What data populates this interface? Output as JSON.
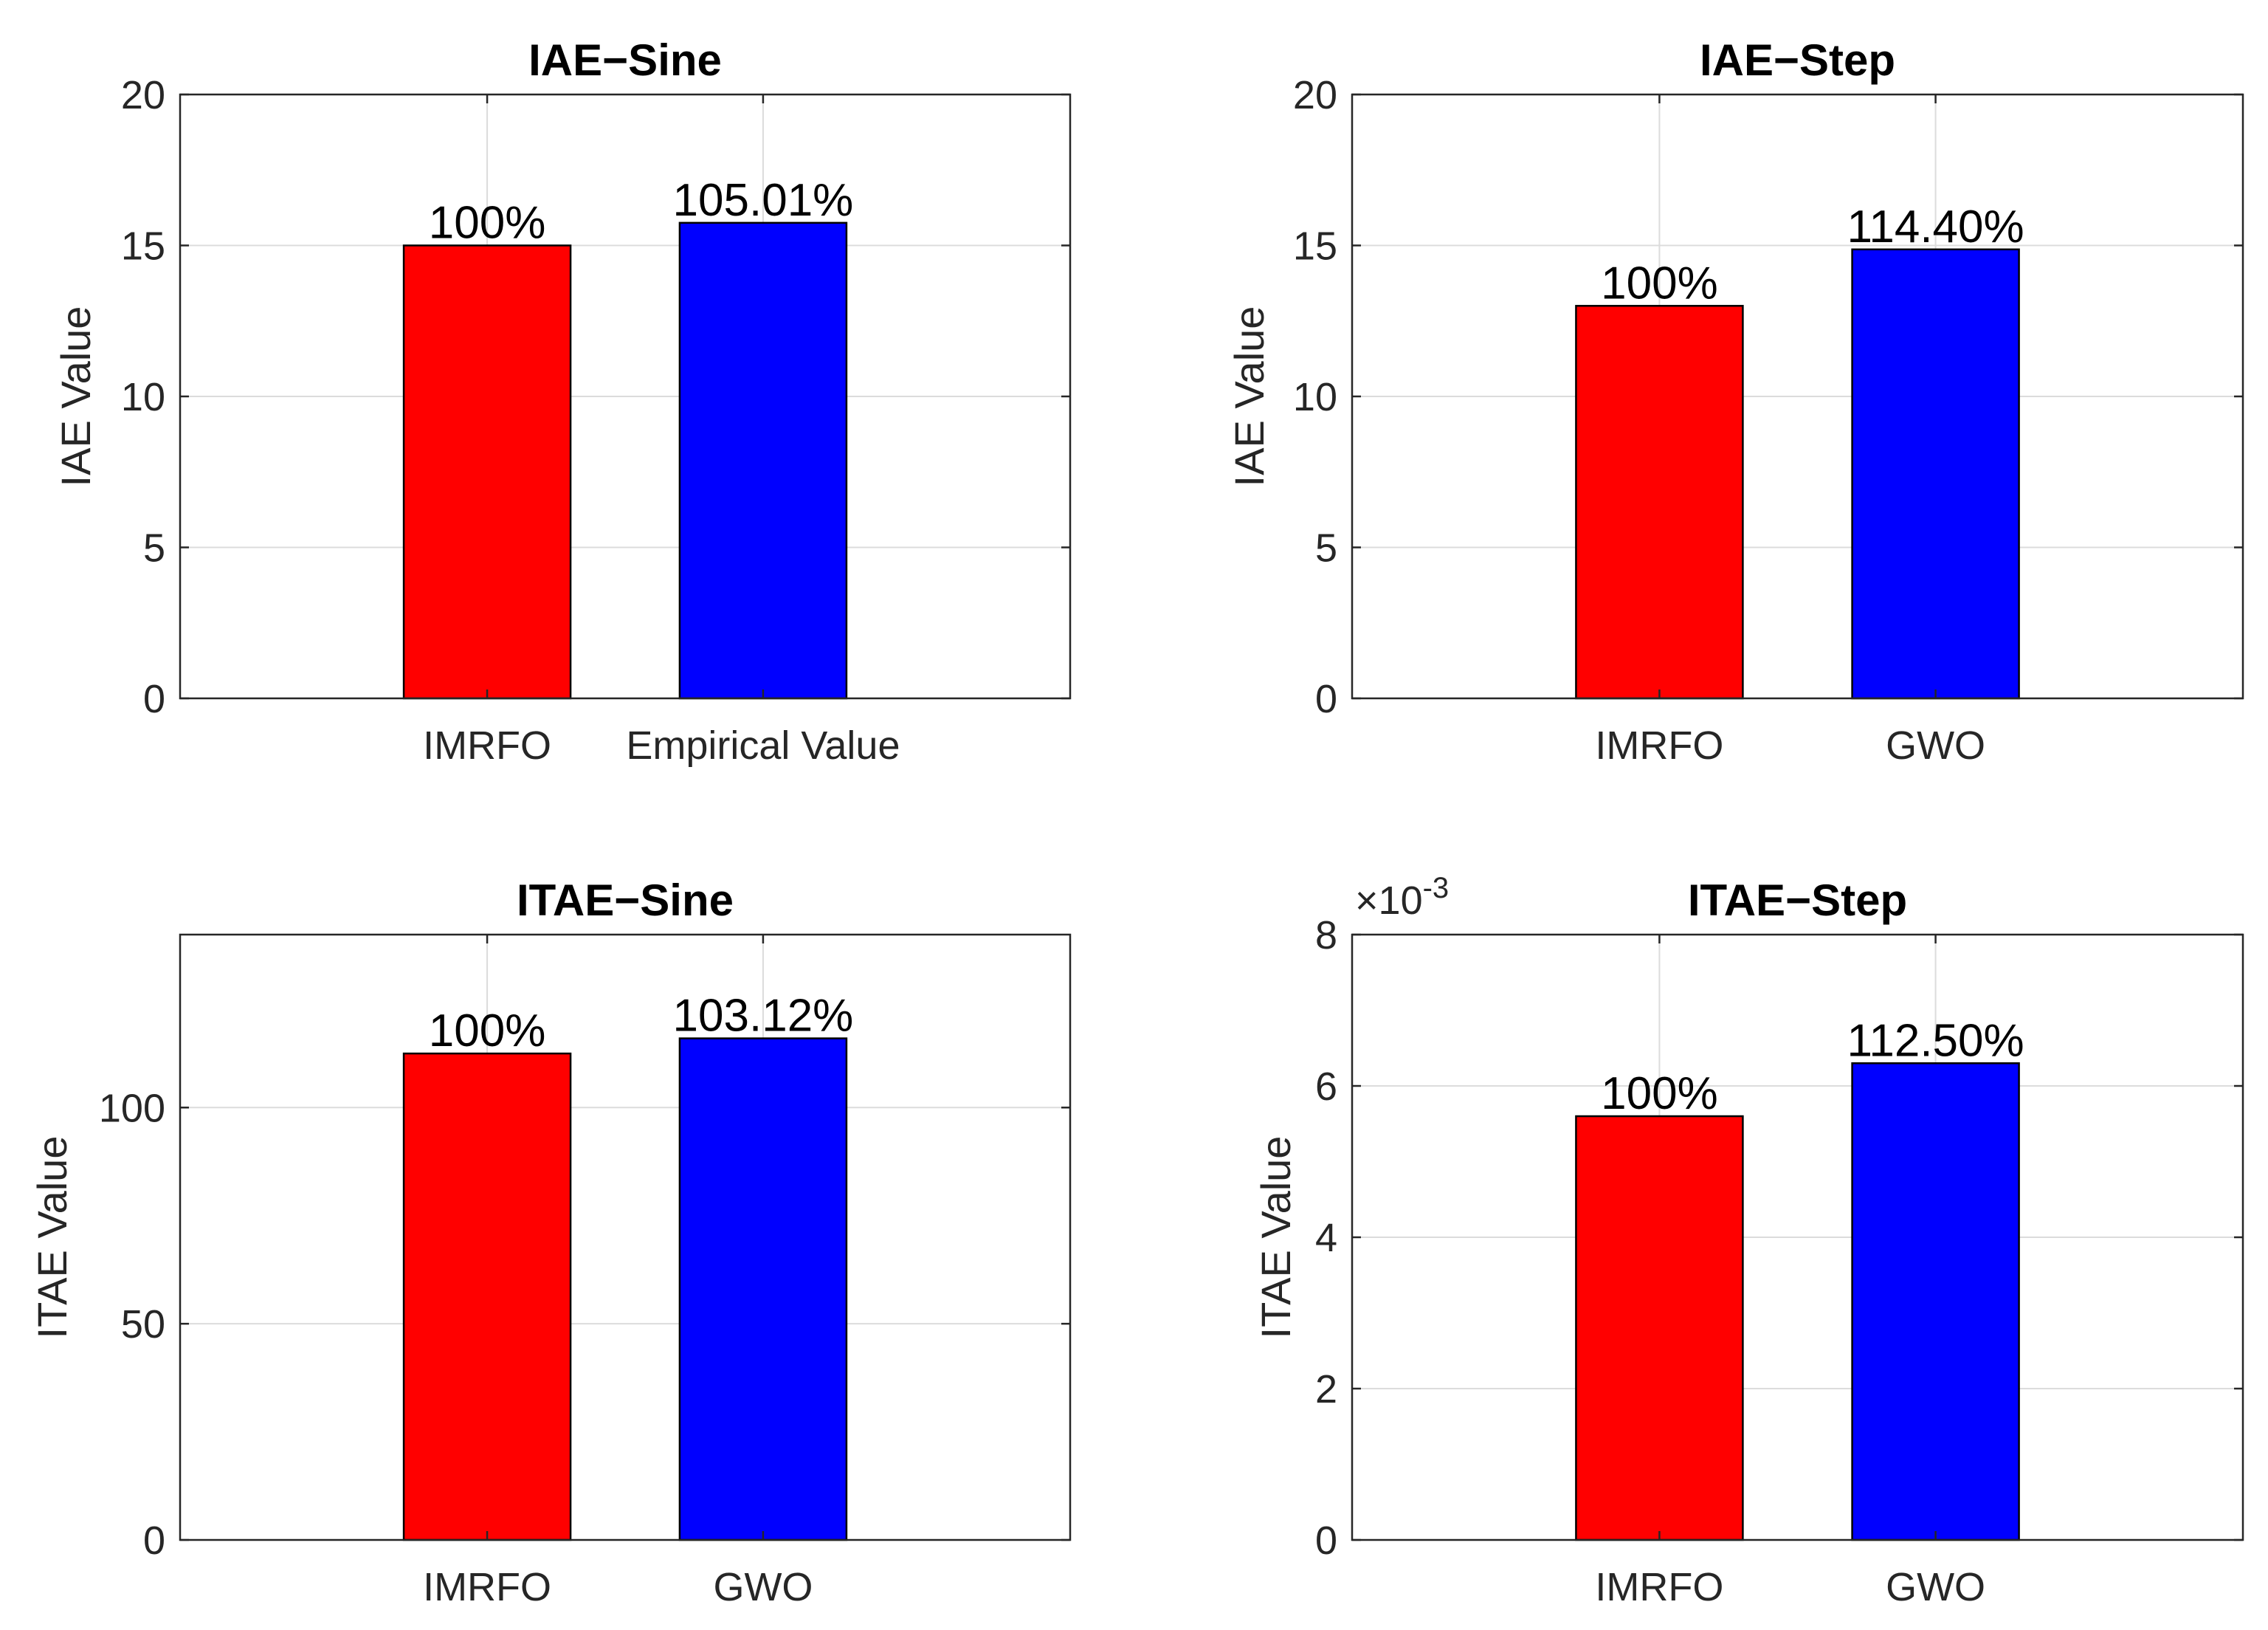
{
  "chart_data": [
    {
      "type": "bar",
      "title": "IAE−Sine",
      "xlabel": "",
      "ylabel": "IAE Value",
      "categories": [
        "IMRFO",
        "Empirical Value"
      ],
      "values": [
        15.0,
        15.75
      ],
      "data_labels": [
        "100%",
        "105.01%"
      ],
      "colors": [
        "#ff0000",
        "#0000ff"
      ],
      "ylim": [
        0,
        20
      ],
      "yticks": [
        0,
        5,
        10,
        15,
        20
      ],
      "ytick_labels": [
        "0",
        "5",
        "10",
        "15",
        "20"
      ],
      "exponent_label": "",
      "grid": true
    },
    {
      "type": "bar",
      "title": "IAE−Step",
      "xlabel": "",
      "ylabel": "IAE Value",
      "categories": [
        "IMRFO",
        "GWO"
      ],
      "values": [
        13.0,
        14.87
      ],
      "data_labels": [
        "100%",
        "114.40%"
      ],
      "colors": [
        "#ff0000",
        "#0000ff"
      ],
      "ylim": [
        0,
        20
      ],
      "yticks": [
        0,
        5,
        10,
        15,
        20
      ],
      "ytick_labels": [
        "0",
        "5",
        "10",
        "15",
        "20"
      ],
      "exponent_label": "",
      "grid": true
    },
    {
      "type": "bar",
      "title": "ITAE−Sine",
      "xlabel": "",
      "ylabel": "ITAE Value",
      "categories": [
        "IMRFO",
        "GWO"
      ],
      "values": [
        112.5,
        116.0
      ],
      "data_labels": [
        "100%",
        "103.12%"
      ],
      "colors": [
        "#ff0000",
        "#0000ff"
      ],
      "ylim": [
        0,
        140
      ],
      "yticks": [
        0,
        50,
        100
      ],
      "ytick_labels": [
        "0",
        "50",
        "100"
      ],
      "exponent_label": "",
      "grid": true
    },
    {
      "type": "bar",
      "title": "ITAE−Step",
      "xlabel": "",
      "ylabel": "ITAE Value",
      "categories": [
        "IMRFO",
        "GWO"
      ],
      "values": [
        0.0056,
        0.0063
      ],
      "data_labels": [
        "100%",
        "112.50%"
      ],
      "colors": [
        "#ff0000",
        "#0000ff"
      ],
      "ylim": [
        0,
        0.008
      ],
      "yticks": [
        0,
        0.002,
        0.004,
        0.006,
        0.008
      ],
      "ytick_labels": [
        "0",
        "2",
        "4",
        "6",
        "8"
      ],
      "exponent_label": "×10",
      "exponent_power": "-3",
      "grid": true
    }
  ]
}
